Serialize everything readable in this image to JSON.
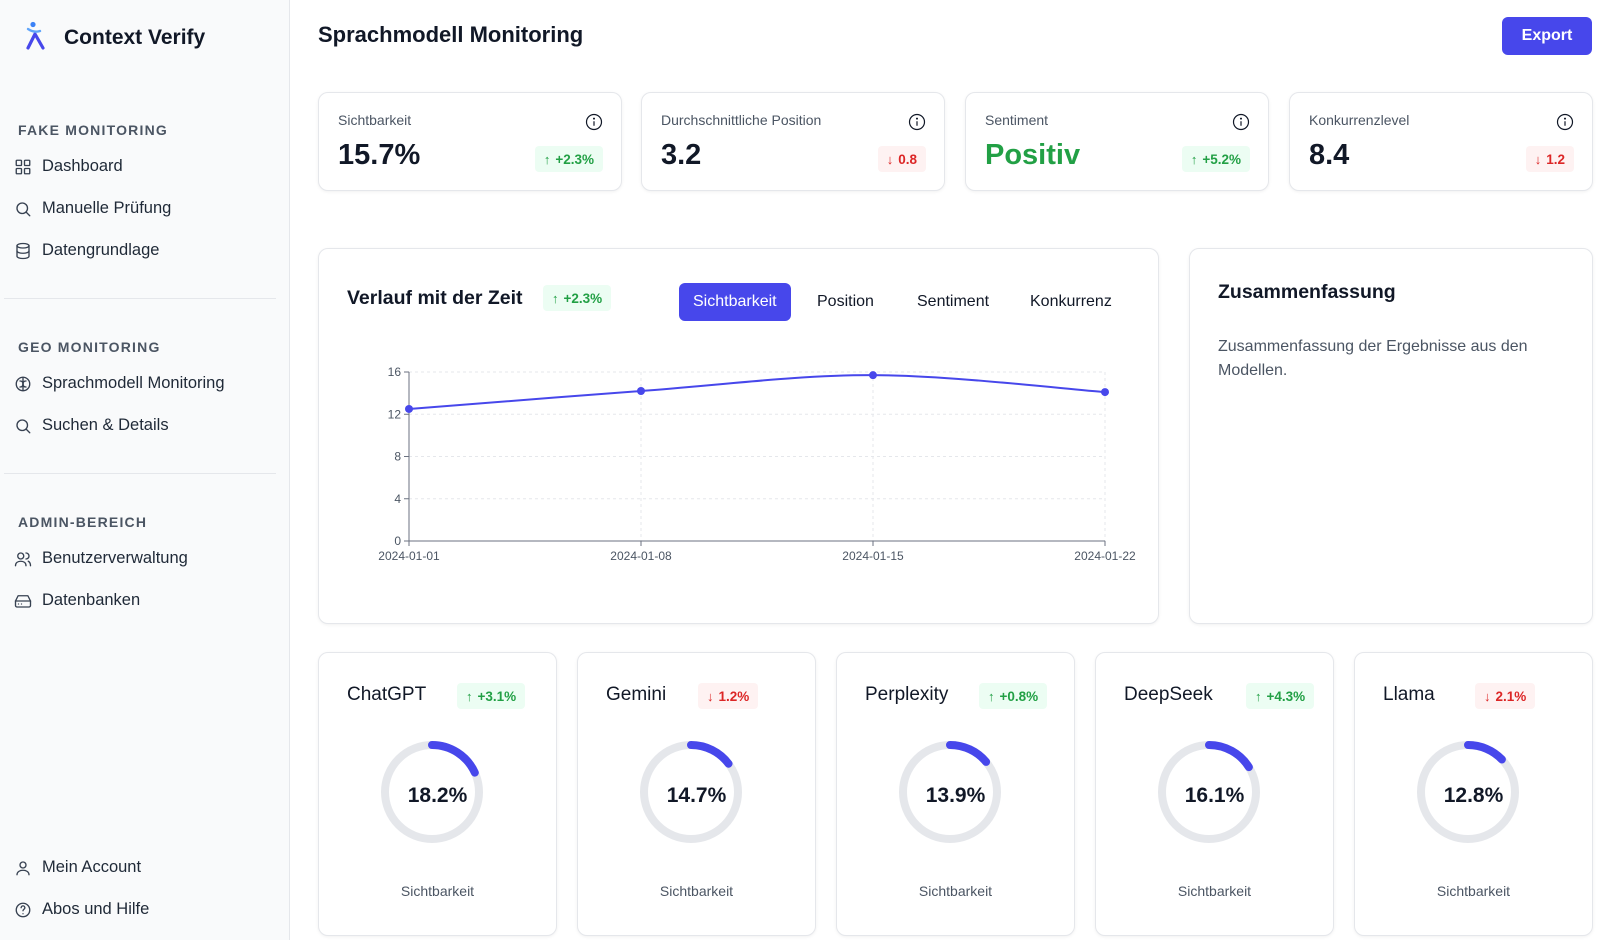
{
  "brand": {
    "name": "Context Verify"
  },
  "sidebar": {
    "sections": [
      {
        "title": "FAKE MONITORING",
        "items": [
          {
            "label": "Dashboard",
            "icon": "grid-icon"
          },
          {
            "label": "Manuelle Prüfung",
            "icon": "search-icon"
          },
          {
            "label": "Datengrundlage",
            "icon": "database-icon"
          }
        ]
      },
      {
        "title": "GEO MONITORING",
        "items": [
          {
            "label": "Sprachmodell Monitoring",
            "icon": "brain-icon"
          },
          {
            "label": "Suchen & Details",
            "icon": "search-icon"
          }
        ]
      },
      {
        "title": "ADMIN-BEREICH",
        "items": [
          {
            "label": "Benutzerverwaltung",
            "icon": "users-icon"
          },
          {
            "label": "Datenbanken",
            "icon": "hard-drive-icon"
          }
        ]
      }
    ],
    "footer": [
      {
        "label": "Mein Account",
        "icon": "user-icon"
      },
      {
        "label": "Abos und Hilfe",
        "icon": "help-circle-icon"
      }
    ]
  },
  "header": {
    "title": "Sprachmodell Monitoring",
    "export_label": "Export"
  },
  "stats": [
    {
      "label": "Sichtbarkeit",
      "value": "15.7%",
      "change": "+2.3%",
      "direction": "up"
    },
    {
      "label": "Durchschnittliche Position",
      "value": "3.2",
      "change": "0.8",
      "direction": "down"
    },
    {
      "label": "Sentiment",
      "value": "Positiv",
      "change": "+5.2%",
      "direction": "up"
    },
    {
      "label": "Konkurrenzlevel",
      "value": "8.4",
      "change": "1.2",
      "direction": "down"
    }
  ],
  "trend": {
    "title": "Verlauf mit der Zeit",
    "change": "+2.3%",
    "tabs": [
      "Sichtbarkeit",
      "Position",
      "Sentiment",
      "Konkurrenz"
    ],
    "active_tab": "Sichtbarkeit"
  },
  "chart_data": {
    "type": "line",
    "title": "",
    "xlabel": "",
    "ylabel": "",
    "x": [
      "2024-01-01",
      "2024-01-08",
      "2024-01-15",
      "2024-01-22"
    ],
    "series": [
      {
        "values": [
          12.5,
          14.2,
          15.7,
          14.1
        ]
      }
    ],
    "ylim": [
      0,
      16
    ],
    "yticks": [
      0,
      4,
      8,
      12,
      16
    ],
    "grid": true,
    "color": "#4747eb"
  },
  "summary": {
    "title": "Zusammenfassung",
    "text": "Zusammenfassung der Ergebnisse aus den Modellen."
  },
  "models": [
    {
      "name": "ChatGPT",
      "change": "+3.1%",
      "direction": "up",
      "value": "18.2%",
      "fraction": 0.182,
      "sublabel": "Sichtbarkeit"
    },
    {
      "name": "Gemini",
      "change": "1.2%",
      "direction": "down",
      "value": "14.7%",
      "fraction": 0.147,
      "sublabel": "Sichtbarkeit"
    },
    {
      "name": "Perplexity",
      "change": "+0.8%",
      "direction": "up",
      "value": "13.9%",
      "fraction": 0.139,
      "sublabel": "Sichtbarkeit"
    },
    {
      "name": "DeepSeek",
      "change": "+4.3%",
      "direction": "up",
      "value": "16.1%",
      "fraction": 0.161,
      "sublabel": "Sichtbarkeit"
    },
    {
      "name": "Llama",
      "change": "2.1%",
      "direction": "down",
      "value": "12.8%",
      "fraction": 0.128,
      "sublabel": "Sichtbarkeit"
    }
  ],
  "colors": {
    "accent": "#4747eb",
    "positive": "#22a045",
    "negative": "#dc2626",
    "track": "#e5e7eb"
  }
}
